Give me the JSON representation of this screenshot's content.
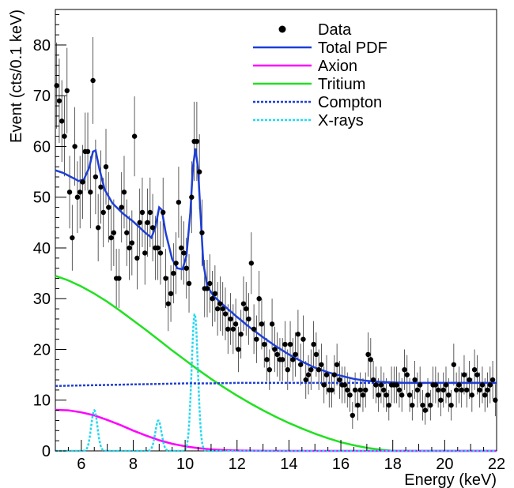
{
  "chart_data": {
    "type": "scatter",
    "xlabel": "Energy (keV)",
    "ylabel": "Event (cts/0.1 keV)",
    "xlim": [
      5,
      22
    ],
    "ylim": [
      0,
      87
    ],
    "x_ticks": [
      6,
      8,
      10,
      12,
      14,
      16,
      18,
      20,
      22
    ],
    "y_ticks": [
      0,
      10,
      20,
      30,
      40,
      50,
      60,
      70,
      80
    ],
    "legend_position": "top-right",
    "legend": [
      {
        "label": "Data",
        "style": "marker",
        "color": "#000000"
      },
      {
        "label": "Total PDF",
        "style": "solid",
        "color": "#1f3fd6"
      },
      {
        "label": "Axion",
        "style": "solid",
        "color": "#ff00ff"
      },
      {
        "label": "Tritium",
        "style": "solid",
        "color": "#22e022"
      },
      {
        "label": "Compton",
        "style": "dotted",
        "color": "#1f3fd6"
      },
      {
        "label": "X-rays",
        "style": "dotted",
        "color": "#22d8f0"
      }
    ],
    "data_points": [
      [
        5.05,
        72
      ],
      [
        5.15,
        69
      ],
      [
        5.25,
        65
      ],
      [
        5.35,
        62
      ],
      [
        5.45,
        71
      ],
      [
        5.55,
        51
      ],
      [
        5.65,
        42
      ],
      [
        5.75,
        60
      ],
      [
        5.85,
        50
      ],
      [
        5.95,
        51
      ],
      [
        6.05,
        53
      ],
      [
        6.15,
        59
      ],
      [
        6.25,
        59
      ],
      [
        6.35,
        51
      ],
      [
        6.45,
        73
      ],
      [
        6.55,
        54
      ],
      [
        6.65,
        44
      ],
      [
        6.75,
        52
      ],
      [
        6.85,
        47
      ],
      [
        6.95,
        56
      ],
      [
        7.05,
        48
      ],
      [
        7.15,
        42
      ],
      [
        7.25,
        43
      ],
      [
        7.35,
        34
      ],
      [
        7.45,
        34
      ],
      [
        7.55,
        48
      ],
      [
        7.65,
        51
      ],
      [
        7.75,
        43
      ],
      [
        7.85,
        40
      ],
      [
        7.95,
        41
      ],
      [
        8.05,
        62
      ],
      [
        8.15,
        38
      ],
      [
        8.25,
        45
      ],
      [
        8.35,
        47
      ],
      [
        8.45,
        39
      ],
      [
        8.55,
        45
      ],
      [
        8.65,
        47
      ],
      [
        8.75,
        44
      ],
      [
        8.85,
        40
      ],
      [
        8.95,
        40
      ],
      [
        9.05,
        39
      ],
      [
        9.15,
        47
      ],
      [
        9.25,
        34
      ],
      [
        9.35,
        29
      ],
      [
        9.45,
        31
      ],
      [
        9.55,
        35
      ],
      [
        9.65,
        37
      ],
      [
        9.75,
        49
      ],
      [
        9.85,
        40
      ],
      [
        9.95,
        39
      ],
      [
        10.05,
        36
      ],
      [
        10.15,
        33
      ],
      [
        10.25,
        50
      ],
      [
        10.35,
        61
      ],
      [
        10.45,
        61
      ],
      [
        10.55,
        55
      ],
      [
        10.65,
        43
      ],
      [
        10.75,
        32
      ],
      [
        10.85,
        32
      ],
      [
        10.95,
        33
      ],
      [
        11.05,
        30
      ],
      [
        11.15,
        31
      ],
      [
        11.25,
        28
      ],
      [
        11.35,
        29
      ],
      [
        11.45,
        28
      ],
      [
        11.55,
        27
      ],
      [
        11.65,
        24
      ],
      [
        11.75,
        26
      ],
      [
        11.85,
        24
      ],
      [
        11.95,
        25
      ],
      [
        12.05,
        20
      ],
      [
        12.15,
        23
      ],
      [
        12.25,
        29
      ],
      [
        12.35,
        28
      ],
      [
        12.45,
        26
      ],
      [
        12.55,
        37
      ],
      [
        12.65,
        24
      ],
      [
        12.75,
        22
      ],
      [
        12.85,
        30
      ],
      [
        12.95,
        25
      ],
      [
        13.05,
        21
      ],
      [
        13.15,
        18
      ],
      [
        13.25,
        16
      ],
      [
        13.35,
        25
      ],
      [
        13.45,
        20
      ],
      [
        13.55,
        19
      ],
      [
        13.65,
        18
      ],
      [
        13.75,
        18
      ],
      [
        13.85,
        21
      ],
      [
        13.95,
        16
      ],
      [
        14.05,
        21
      ],
      [
        14.15,
        18
      ],
      [
        14.25,
        19
      ],
      [
        14.35,
        23
      ],
      [
        14.45,
        17
      ],
      [
        14.55,
        22
      ],
      [
        14.65,
        14
      ],
      [
        14.75,
        15
      ],
      [
        14.85,
        16
      ],
      [
        14.95,
        21
      ],
      [
        15.05,
        19
      ],
      [
        15.15,
        16
      ],
      [
        15.25,
        17
      ],
      [
        15.35,
        13
      ],
      [
        15.45,
        15
      ],
      [
        15.55,
        12
      ],
      [
        15.65,
        12
      ],
      [
        15.75,
        15
      ],
      [
        15.85,
        17
      ],
      [
        15.95,
        14
      ],
      [
        16.05,
        13
      ],
      [
        16.15,
        13
      ],
      [
        16.25,
        12
      ],
      [
        16.35,
        11
      ],
      [
        16.45,
        7
      ],
      [
        16.55,
        12
      ],
      [
        16.65,
        9
      ],
      [
        16.75,
        12
      ],
      [
        16.85,
        11
      ],
      [
        16.95,
        12
      ],
      [
        17.05,
        19
      ],
      [
        17.15,
        18
      ],
      [
        17.25,
        14
      ],
      [
        17.35,
        13
      ],
      [
        17.45,
        11
      ],
      [
        17.55,
        13
      ],
      [
        17.65,
        12
      ],
      [
        17.75,
        11
      ],
      [
        17.85,
        9
      ],
      [
        17.95,
        13
      ],
      [
        18.05,
        13
      ],
      [
        18.15,
        13
      ],
      [
        18.25,
        12
      ],
      [
        18.35,
        11
      ],
      [
        18.45,
        16
      ],
      [
        18.55,
        15
      ],
      [
        18.65,
        11
      ],
      [
        18.75,
        9
      ],
      [
        18.85,
        14
      ],
      [
        18.95,
        12
      ],
      [
        19.05,
        13
      ],
      [
        19.15,
        9
      ],
      [
        19.25,
        8
      ],
      [
        19.35,
        11
      ],
      [
        19.45,
        9
      ],
      [
        19.55,
        13
      ],
      [
        19.65,
        13
      ],
      [
        19.75,
        12
      ],
      [
        19.85,
        10
      ],
      [
        19.95,
        12
      ],
      [
        20.05,
        13
      ],
      [
        20.15,
        11
      ],
      [
        20.25,
        9
      ],
      [
        20.35,
        17
      ],
      [
        20.45,
        12
      ],
      [
        20.55,
        13
      ],
      [
        20.65,
        12
      ],
      [
        20.75,
        15
      ],
      [
        20.85,
        12
      ],
      [
        20.95,
        14
      ],
      [
        21.05,
        11
      ],
      [
        21.15,
        16
      ],
      [
        21.25,
        15
      ],
      [
        21.35,
        12
      ],
      [
        21.45,
        13
      ],
      [
        21.55,
        11
      ],
      [
        21.65,
        12
      ],
      [
        21.75,
        13
      ],
      [
        21.85,
        14
      ],
      [
        21.95,
        10
      ]
    ],
    "curves": {
      "total_pdf": [
        [
          5.0,
          55.3
        ],
        [
          5.3,
          54.8
        ],
        [
          5.6,
          54.0
        ],
        [
          5.9,
          53.2
        ],
        [
          6.1,
          53.5
        ],
        [
          6.3,
          55.8
        ],
        [
          6.45,
          59.0
        ],
        [
          6.55,
          59.2
        ],
        [
          6.7,
          55.5
        ],
        [
          6.9,
          51.5
        ],
        [
          7.2,
          48.8
        ],
        [
          7.6,
          46.8
        ],
        [
          8.0,
          45.2
        ],
        [
          8.4,
          43.3
        ],
        [
          8.7,
          42.0
        ],
        [
          8.85,
          44.0
        ],
        [
          9.0,
          48.0
        ],
        [
          9.1,
          47.5
        ],
        [
          9.25,
          43.0
        ],
        [
          9.5,
          37.8
        ],
        [
          9.7,
          36.0
        ],
        [
          9.9,
          35.8
        ],
        [
          10.05,
          38.5
        ],
        [
          10.2,
          47.0
        ],
        [
          10.3,
          56.0
        ],
        [
          10.4,
          59.6
        ],
        [
          10.5,
          55.5
        ],
        [
          10.6,
          46.0
        ],
        [
          10.7,
          37.0
        ],
        [
          10.85,
          32.5
        ],
        [
          11.1,
          30.5
        ],
        [
          11.5,
          28.6
        ],
        [
          12.0,
          26.4
        ],
        [
          12.5,
          24.3
        ],
        [
          13.0,
          22.4
        ],
        [
          13.5,
          20.6
        ],
        [
          14.0,
          19.0
        ],
        [
          14.5,
          17.6
        ],
        [
          15.0,
          16.4
        ],
        [
          15.5,
          15.5
        ],
        [
          16.0,
          14.8
        ],
        [
          16.5,
          14.2
        ],
        [
          17.0,
          13.8
        ],
        [
          17.5,
          13.6
        ],
        [
          18.0,
          13.5
        ],
        [
          18.5,
          13.4
        ],
        [
          19.0,
          13.4
        ],
        [
          20.0,
          13.4
        ],
        [
          21.0,
          13.4
        ],
        [
          22.0,
          13.4
        ]
      ],
      "axion": [
        [
          5.0,
          8.1
        ],
        [
          5.5,
          8.0
        ],
        [
          6.0,
          7.6
        ],
        [
          6.5,
          7.0
        ],
        [
          7.0,
          6.1
        ],
        [
          7.5,
          5.1
        ],
        [
          8.0,
          4.0
        ],
        [
          8.5,
          3.0
        ],
        [
          9.0,
          2.1
        ],
        [
          9.5,
          1.4
        ],
        [
          10.0,
          0.9
        ],
        [
          10.5,
          0.55
        ],
        [
          11.0,
          0.3
        ],
        [
          11.5,
          0.15
        ],
        [
          12.0,
          0.08
        ],
        [
          13.0,
          0.02
        ],
        [
          14.0,
          0.0
        ],
        [
          22.0,
          0.0
        ]
      ],
      "tritium": [
        [
          5.0,
          34.5
        ],
        [
          5.5,
          33.6
        ],
        [
          6.0,
          32.4
        ],
        [
          6.5,
          31.0
        ],
        [
          7.0,
          29.4
        ],
        [
          7.5,
          27.6
        ],
        [
          8.0,
          25.7
        ],
        [
          8.5,
          23.8
        ],
        [
          9.0,
          21.8
        ],
        [
          9.5,
          19.8
        ],
        [
          10.0,
          17.9
        ],
        [
          10.5,
          16.0
        ],
        [
          11.0,
          14.2
        ],
        [
          11.5,
          12.5
        ],
        [
          12.0,
          10.9
        ],
        [
          12.5,
          9.4
        ],
        [
          13.0,
          8.0
        ],
        [
          13.5,
          6.7
        ],
        [
          14.0,
          5.5
        ],
        [
          14.5,
          4.4
        ],
        [
          15.0,
          3.4
        ],
        [
          15.5,
          2.5
        ],
        [
          16.0,
          1.7
        ],
        [
          16.5,
          1.1
        ],
        [
          17.0,
          0.6
        ],
        [
          17.5,
          0.25
        ],
        [
          18.0,
          0.0
        ],
        [
          22.0,
          0.0
        ]
      ],
      "compton": [
        [
          5.0,
          12.8
        ],
        [
          6.0,
          12.9
        ],
        [
          7.0,
          13.0
        ],
        [
          8.0,
          13.1
        ],
        [
          9.0,
          13.2
        ],
        [
          10.0,
          13.3
        ],
        [
          11.0,
          13.3
        ],
        [
          12.0,
          13.4
        ],
        [
          14.0,
          13.4
        ],
        [
          16.0,
          13.4
        ],
        [
          18.0,
          13.4
        ],
        [
          22.0,
          13.4
        ]
      ],
      "xray_peaks": [
        {
          "center": 6.5,
          "height": 8.0,
          "sigma": 0.12
        },
        {
          "center": 8.97,
          "height": 6.0,
          "sigma": 0.12
        },
        {
          "center": 10.37,
          "height": 27.0,
          "sigma": 0.12
        }
      ]
    }
  }
}
